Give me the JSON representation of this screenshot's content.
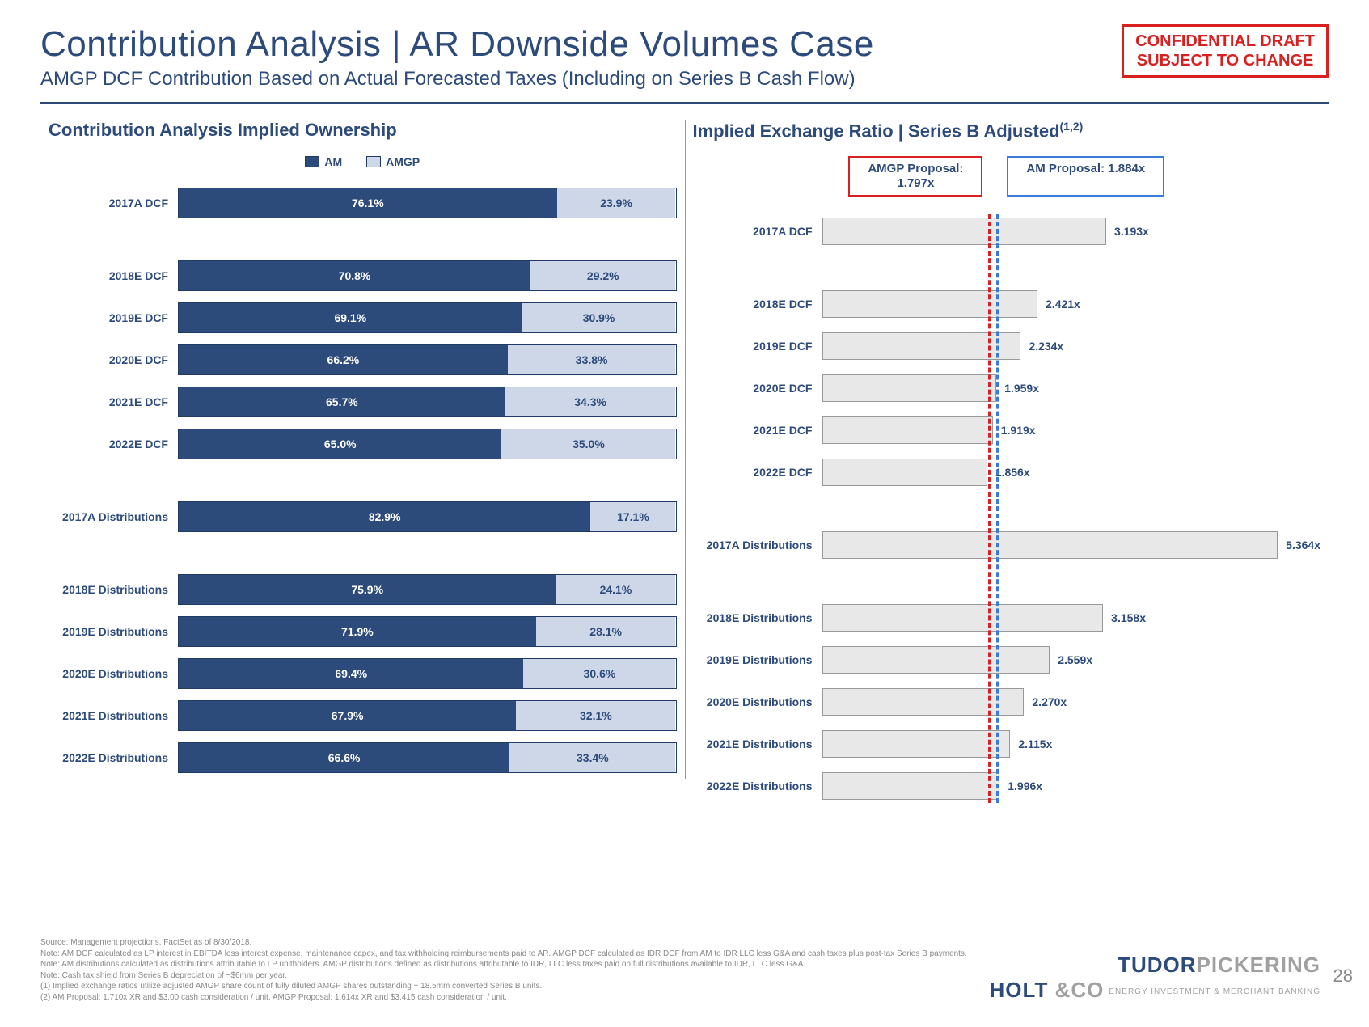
{
  "title": "Contribution Analysis | AR Downside Volumes Case",
  "subtitle": "AMGP DCF Contribution Based on Actual Forecasted Taxes (Including on Series B Cash Flow)",
  "confidential": {
    "line1": "CONFIDENTIAL DRAFT",
    "line2": "SUBJECT TO CHANGE"
  },
  "colors": {
    "am": "#2c4a7a",
    "amgp": "#cdd7e8",
    "red": "#d92020",
    "blue": "#3a7ad9",
    "bar_fill": "#e8e8e8",
    "bar_border": "#999999",
    "text": "#2c4a7a"
  },
  "left_chart": {
    "title": "Contribution Analysis Implied Ownership",
    "legend": [
      {
        "key": "am",
        "label": "AM"
      },
      {
        "key": "amgp",
        "label": "AMGP"
      }
    ],
    "rows": [
      {
        "label": "2017A DCF",
        "am": 76.1,
        "amgp": 23.9,
        "gap_after": true
      },
      {
        "label": "2018E DCF",
        "am": 70.8,
        "amgp": 29.2
      },
      {
        "label": "2019E DCF",
        "am": 69.1,
        "amgp": 30.9
      },
      {
        "label": "2020E DCF",
        "am": 66.2,
        "amgp": 33.8
      },
      {
        "label": "2021E DCF",
        "am": 65.7,
        "amgp": 34.3
      },
      {
        "label": "2022E DCF",
        "am": 65.0,
        "amgp": 35.0,
        "gap_after": true
      },
      {
        "label": "2017A Distributions",
        "am": 82.9,
        "amgp": 17.1,
        "gap_after": true
      },
      {
        "label": "2018E Distributions",
        "am": 75.9,
        "amgp": 24.1
      },
      {
        "label": "2019E Distributions",
        "am": 71.9,
        "amgp": 28.1
      },
      {
        "label": "2020E Distributions",
        "am": 69.4,
        "amgp": 30.6
      },
      {
        "label": "2021E Distributions",
        "am": 67.9,
        "amgp": 32.1
      },
      {
        "label": "2022E Distributions",
        "am": 66.6,
        "amgp": 33.4
      }
    ]
  },
  "right_chart": {
    "title": "Implied Exchange Ratio | Series B Adjusted",
    "title_sup": "(1,2)",
    "proposals": {
      "amgp": {
        "label": "AMGP Proposal:",
        "value": "1.797x",
        "ref": 1.797
      },
      "am": {
        "label": "AM Proposal: 1.884x",
        "ref": 1.884
      }
    },
    "xmax": 5.6,
    "rows": [
      {
        "label": "2017A DCF",
        "value": 3.193,
        "gap_after": true
      },
      {
        "label": "2018E DCF",
        "value": 2.421
      },
      {
        "label": "2019E DCF",
        "value": 2.234
      },
      {
        "label": "2020E DCF",
        "value": 1.959
      },
      {
        "label": "2021E DCF",
        "value": 1.919
      },
      {
        "label": "2022E DCF",
        "value": 1.856,
        "gap_after": true
      },
      {
        "label": "2017A Distributions",
        "value": 5.364,
        "gap_after": true
      },
      {
        "label": "2018E Distributions",
        "value": 3.158
      },
      {
        "label": "2019E Distributions",
        "value": 2.559
      },
      {
        "label": "2020E Distributions",
        "value": 2.27
      },
      {
        "label": "2021E Distributions",
        "value": 2.115
      },
      {
        "label": "2022E Distributions",
        "value": 1.996
      }
    ]
  },
  "footnotes": [
    "Source: Management projections. FactSet as of 8/30/2018.",
    "Note: AM DCF calculated as LP interest in EBITDA less interest expense, maintenance capex, and tax withholding reimbursements paid to AR. AMGP DCF calculated as IDR DCF from AM to IDR LLC less G&A and cash taxes plus post-tax Series B payments.",
    "Note: AM distributions calculated as distributions attributable to LP unitholders. AMGP distributions defined as distributions attributable to IDR, LLC less taxes paid on full distributions available to IDR, LLC less G&A.",
    "Note: Cash tax shield from Series B depreciation of ~$6mm per year.",
    "(1)    Implied exchange ratios utilize adjusted AMGP share count of fully diluted AMGP shares outstanding + 18.5mm converted Series B units.",
    "(2)    AM Proposal: 1.710x XR and $3.00 cash consideration / unit. AMGP Proposal: 1.614x XR and $3.415 cash consideration / unit."
  ],
  "page_number": "28",
  "logo": {
    "l1a": "TUDOR",
    "l1b": "PICKERING",
    "l2a": "HOLT",
    "l2b": "&CO",
    "tag": "ENERGY INVESTMENT & MERCHANT BANKING"
  }
}
